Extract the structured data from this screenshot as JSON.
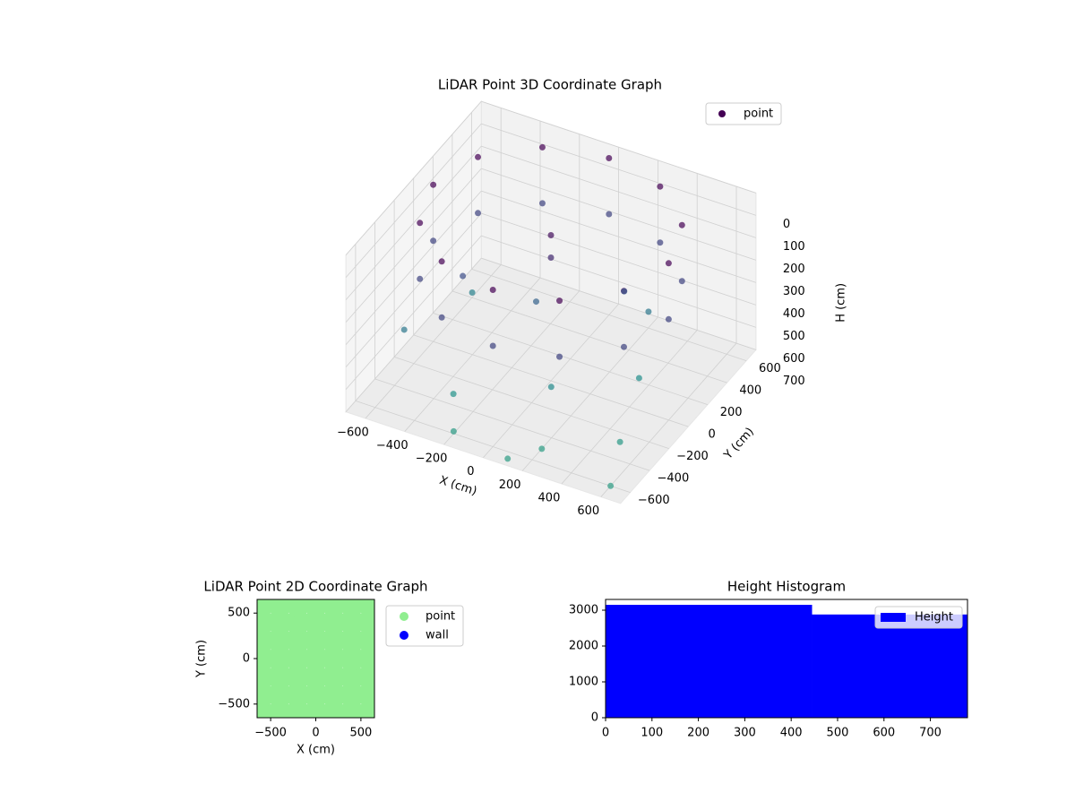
{
  "chart_data": [
    {
      "type": "scatter3d",
      "title": "LiDAR Point 3D Coordinate Graph",
      "x_label": "X (cm)",
      "y_label": "Y (cm)",
      "z_label": "H (cm)",
      "xlim": [
        -700,
        700
      ],
      "ylim": [
        -700,
        700
      ],
      "zlim": [
        0,
        700
      ],
      "z_inverted": true,
      "xticks": [
        {
          "value": -600,
          "label": "−600"
        },
        {
          "value": -400,
          "label": "−400"
        },
        {
          "value": -200,
          "label": "−200"
        },
        0,
        200,
        400,
        600
      ],
      "yticks": [
        {
          "value": -600,
          "label": "−600"
        },
        {
          "value": -400,
          "label": "−400"
        },
        {
          "value": -200,
          "label": "−200"
        },
        0,
        200,
        400,
        600
      ],
      "zticks": [
        0,
        100,
        200,
        300,
        400,
        500,
        600,
        700
      ],
      "cmap": "viridis",
      "legend": "upper right",
      "series": [
        {
          "name": "point",
          "color": "#440154",
          "x": [
            600,
            520,
            300,
            0,
            -300,
            -520,
            -600,
            -520,
            -300,
            0,
            300,
            520,
            600,
            520,
            300,
            0,
            -300,
            -520,
            -600,
            -520,
            -300,
            0,
            300,
            520,
            -300,
            200,
            500,
            100,
            -500,
            400,
            0,
            0,
            -100,
            300,
            -400,
            600,
            -200,
            100,
            -600,
            250
          ],
          "y": [
            0,
            300,
            520,
            600,
            520,
            300,
            0,
            -300,
            -520,
            -600,
            -520,
            -300,
            0,
            300,
            520,
            600,
            520,
            300,
            0,
            -300,
            -520,
            -600,
            -520,
            -300,
            -400,
            -500,
            -300,
            -200,
            200,
            100,
            0,
            0,
            50,
            400,
            -100,
            -600,
            -600,
            -650,
            -300,
            250
          ],
          "z": [
            0,
            0,
            0,
            0,
            0,
            0,
            0,
            0,
            0,
            0,
            0,
            0,
            250,
            250,
            250,
            250,
            250,
            250,
            250,
            250,
            250,
            250,
            250,
            250,
            650,
            700,
            680,
            600,
            550,
            620,
            50,
            150,
            400,
            500,
            300,
            700,
            690,
            700,
            500,
            350
          ]
        }
      ]
    },
    {
      "type": "scatter",
      "title": "LiDAR Point 2D Coordinate Graph",
      "x_label": "X (cm)",
      "y_label": "Y (cm)",
      "xlim": [
        -650,
        650
      ],
      "ylim": [
        -650,
        650
      ],
      "xticks": [
        {
          "value": -500,
          "label": "−500"
        },
        0,
        500
      ],
      "yticks": [
        {
          "value": -500,
          "label": "−500"
        },
        0,
        500
      ],
      "legend": "outside upper right",
      "series": [
        {
          "name": "point",
          "color": "#90ee90",
          "x": [
            -600,
            -400,
            -200,
            0,
            200,
            400,
            600,
            -600,
            -400,
            -200,
            0,
            200,
            400,
            600,
            -600,
            -400,
            -200,
            0,
            200,
            400,
            600,
            -600,
            -400,
            -200,
            0,
            200,
            400,
            600,
            -600,
            -400,
            -200,
            0,
            200,
            400,
            600,
            -600,
            -400,
            -200,
            0,
            200,
            400,
            600,
            -600,
            -400,
            -200,
            0,
            200,
            400,
            600
          ],
          "y": [
            -600,
            -600,
            -600,
            -600,
            -600,
            -600,
            -600,
            -400,
            -400,
            -400,
            -400,
            -400,
            -400,
            -400,
            -200,
            -200,
            -200,
            -200,
            -200,
            -200,
            -200,
            0,
            0,
            0,
            0,
            0,
            0,
            0,
            200,
            200,
            200,
            200,
            200,
            200,
            200,
            400,
            400,
            400,
            400,
            400,
            400,
            400,
            600,
            600,
            600,
            600,
            600,
            600,
            600
          ]
        },
        {
          "name": "wall",
          "color": "#0000ff",
          "x": [],
          "y": []
        }
      ]
    },
    {
      "type": "histogram",
      "title": "Height Histogram",
      "bins": [
        0,
        445,
        780
      ],
      "counts": [
        3150,
        2880
      ],
      "xlim": [
        0,
        780
      ],
      "ylim": [
        0,
        3300
      ],
      "xticks": [
        0,
        100,
        200,
        300,
        400,
        500,
        600,
        700
      ],
      "yticks": [
        0,
        1000,
        2000,
        3000
      ],
      "series_name": "Height",
      "color": "#0000ff",
      "legend": "upper right"
    }
  ]
}
